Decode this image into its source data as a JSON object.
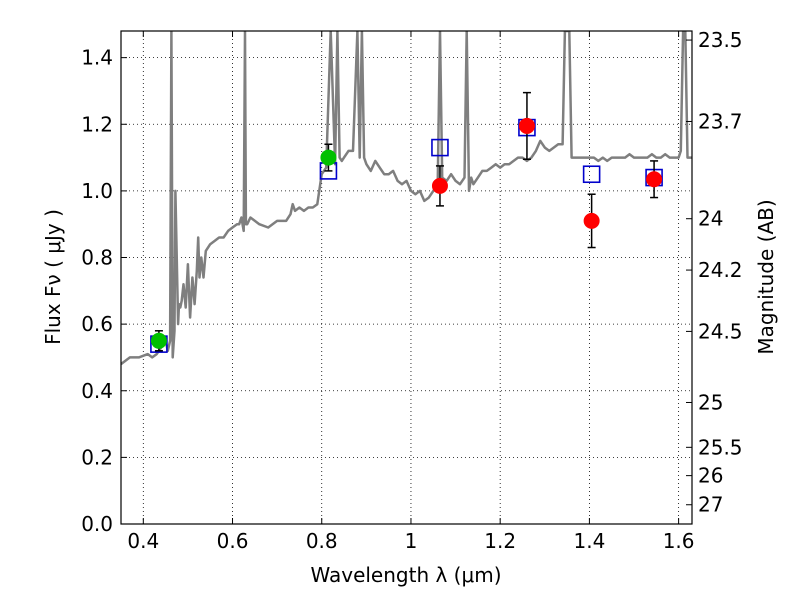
{
  "chart_data": {
    "type": "scatter",
    "xlabel": "Wavelength  λ (μm)",
    "ylabel": "Flux  Fν  ( μJy )",
    "y2label": "Magnitude (AB)",
    "xlim": [
      0.35,
      1.63
    ],
    "ylim": [
      0.0,
      1.48
    ],
    "grid": true,
    "x_ticks": [
      0.4,
      0.6,
      0.8,
      1.0,
      1.2,
      1.4,
      1.6
    ],
    "x_tick_labels": [
      "0.4",
      "0.6",
      "0.8",
      "1",
      "1.2",
      "1.4",
      "1.6"
    ],
    "y_ticks": [
      0.0,
      0.2,
      0.4,
      0.6,
      0.8,
      1.0,
      1.2,
      1.4
    ],
    "y_tick_labels": [
      "0.0",
      "0.2",
      "0.4",
      "0.6",
      "0.8",
      "1.0",
      "1.2",
      "1.4"
    ],
    "y2_ticks": [
      {
        "label": "23.5",
        "flux": 1.4528
      },
      {
        "label": "23.7",
        "flux": 1.2084
      },
      {
        "label": "24",
        "flux": 0.9165
      },
      {
        "label": "24.2",
        "flux": 0.7623
      },
      {
        "label": "24.5",
        "flux": 0.5782
      },
      {
        "label": "25",
        "flux": 0.3648
      },
      {
        "label": "25.5",
        "flux": 0.2302
      },
      {
        "label": "26",
        "flux": 0.1452
      },
      {
        "label": "27",
        "flux": 0.0578
      }
    ],
    "series": [
      {
        "kind": "line",
        "color": "#7f7f7f",
        "x": [
          0.35,
          0.37,
          0.39,
          0.41,
          0.42,
          0.43,
          0.44,
          0.45,
          0.455,
          0.46,
          0.463,
          0.466,
          0.47,
          0.472,
          0.478,
          0.48,
          0.483,
          0.486,
          0.49,
          0.495,
          0.5,
          0.505,
          0.51,
          0.515,
          0.52,
          0.523,
          0.526,
          0.53,
          0.535,
          0.54,
          0.55,
          0.56,
          0.57,
          0.58,
          0.59,
          0.6,
          0.61,
          0.615,
          0.62,
          0.625,
          0.628,
          0.63,
          0.633,
          0.64,
          0.66,
          0.68,
          0.7,
          0.72,
          0.73,
          0.735,
          0.74,
          0.75,
          0.76,
          0.77,
          0.78,
          0.79,
          0.8,
          0.81,
          0.82,
          0.83,
          0.835,
          0.84,
          0.845,
          0.85,
          0.86,
          0.87,
          0.88,
          0.885,
          0.89,
          0.895,
          0.9,
          0.91,
          0.92,
          0.93,
          0.94,
          0.95,
          0.96,
          0.97,
          0.98,
          0.99,
          1.0,
          1.01,
          1.02,
          1.03,
          1.04,
          1.05,
          1.06,
          1.065,
          1.07,
          1.08,
          1.09,
          1.1,
          1.11,
          1.12,
          1.125,
          1.13,
          1.135,
          1.14,
          1.15,
          1.16,
          1.17,
          1.18,
          1.19,
          1.2,
          1.21,
          1.22,
          1.23,
          1.24,
          1.25,
          1.26,
          1.27,
          1.28,
          1.29,
          1.3,
          1.31,
          1.32,
          1.33,
          1.34,
          1.345,
          1.35,
          1.355,
          1.36,
          1.37,
          1.38,
          1.39,
          1.4,
          1.41,
          1.42,
          1.43,
          1.44,
          1.45,
          1.46,
          1.47,
          1.48,
          1.49,
          1.5,
          1.51,
          1.52,
          1.53,
          1.54,
          1.55,
          1.56,
          1.57,
          1.58,
          1.59,
          1.6,
          1.605,
          1.61,
          1.615,
          1.62,
          1.63
        ],
        "y": [
          0.48,
          0.5,
          0.5,
          0.51,
          0.5,
          0.51,
          0.53,
          0.55,
          0.52,
          0.55,
          1.48,
          0.5,
          0.58,
          1.0,
          0.6,
          0.66,
          0.65,
          0.67,
          0.72,
          0.65,
          0.78,
          0.62,
          0.74,
          0.66,
          0.76,
          0.86,
          0.74,
          0.8,
          0.74,
          0.82,
          0.84,
          0.85,
          0.86,
          0.86,
          0.88,
          0.89,
          0.9,
          0.9,
          0.92,
          0.88,
          1.48,
          0.9,
          0.9,
          0.92,
          0.9,
          0.89,
          0.91,
          0.91,
          0.93,
          0.96,
          0.94,
          0.95,
          0.94,
          0.95,
          0.95,
          0.96,
          1.05,
          1.07,
          1.48,
          1.08,
          1.48,
          1.1,
          1.09,
          1.1,
          1.12,
          1.12,
          1.48,
          1.1,
          1.48,
          1.1,
          1.08,
          1.06,
          1.09,
          1.07,
          1.05,
          1.05,
          1.06,
          1.03,
          1.02,
          1.03,
          1.0,
          0.99,
          1.0,
          0.97,
          0.98,
          1.0,
          1.02,
          1.48,
          1.04,
          1.03,
          1.05,
          1.03,
          1.02,
          1.04,
          1.48,
          1.0,
          1.04,
          1.02,
          1.04,
          1.06,
          1.06,
          1.07,
          1.08,
          1.07,
          1.08,
          1.08,
          1.09,
          1.1,
          1.1,
          1.09,
          1.1,
          1.12,
          1.15,
          1.13,
          1.12,
          1.13,
          1.14,
          1.14,
          1.48,
          1.48,
          1.48,
          1.1,
          1.1,
          1.1,
          1.1,
          1.1,
          1.1,
          1.09,
          1.1,
          1.09,
          1.1,
          1.1,
          1.1,
          1.1,
          1.11,
          1.1,
          1.1,
          1.1,
          1.1,
          1.11,
          1.1,
          1.1,
          1.11,
          1.1,
          1.1,
          1.1,
          1.12,
          1.48,
          1.48,
          1.1,
          1.1
        ]
      },
      {
        "kind": "open-square",
        "color": "#0000cc",
        "x": [
          0.435,
          0.815,
          1.065,
          1.26,
          1.405,
          1.545
        ],
        "y": [
          0.54,
          1.06,
          1.13,
          1.19,
          1.05,
          1.04
        ]
      },
      {
        "kind": "filled-circle",
        "color": "#00c000",
        "x": [
          0.435,
          0.815
        ],
        "y": [
          0.55,
          1.1
        ],
        "err": [
          0.03,
          0.04
        ]
      },
      {
        "kind": "filled-circle",
        "color": "#ff0000",
        "x": [
          1.065,
          1.26,
          1.405,
          1.545
        ],
        "y": [
          1.015,
          1.195,
          0.91,
          1.035
        ],
        "err": [
          0.06,
          0.1,
          0.08,
          0.055
        ]
      }
    ]
  }
}
